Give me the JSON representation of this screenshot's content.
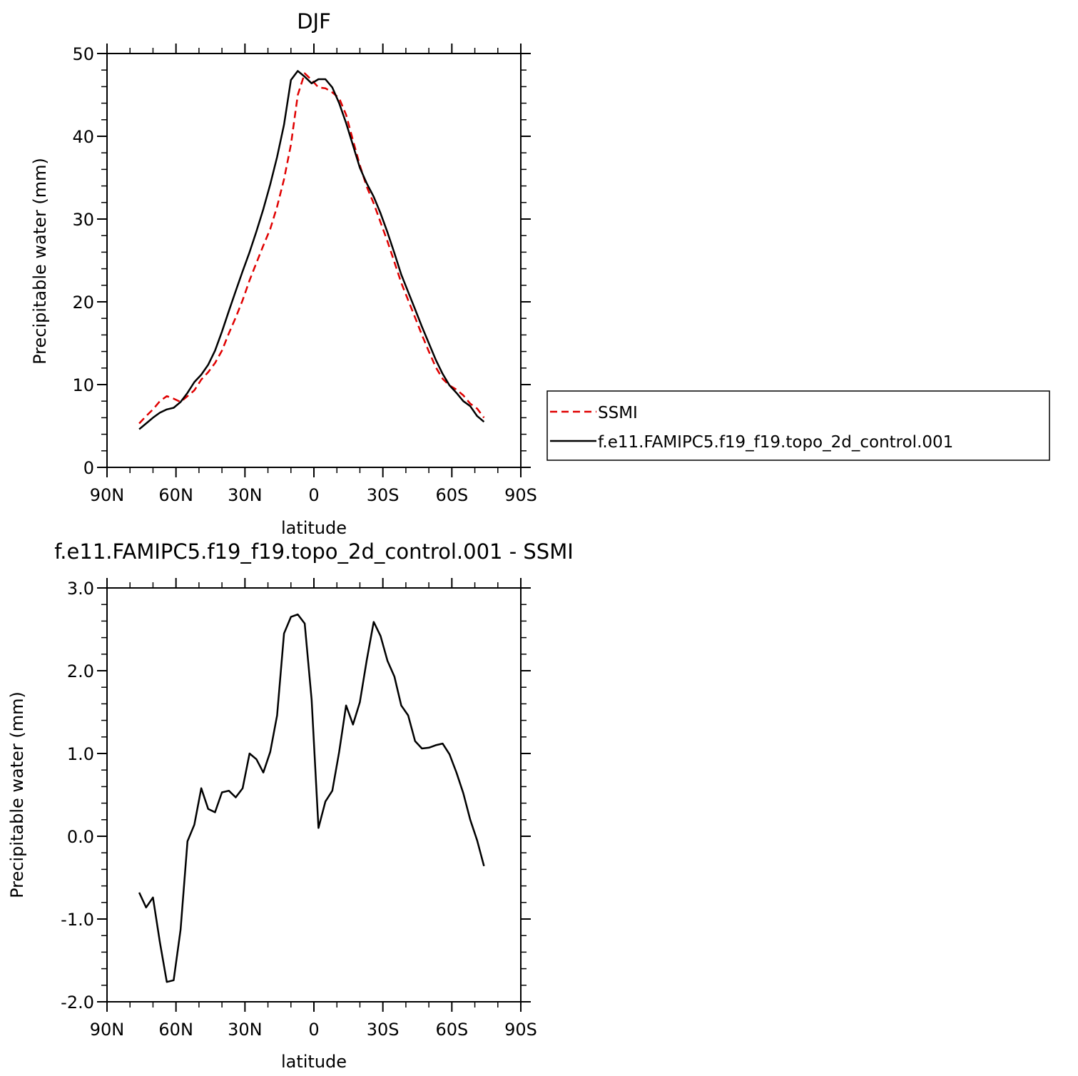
{
  "chart_data": [
    {
      "type": "line",
      "title": "DJF",
      "xlabel": "latitude",
      "ylabel": "Precipitable water (mm)",
      "xlim": [
        -90,
        90
      ],
      "ylim": [
        0,
        50
      ],
      "xticks": [
        -90,
        -60,
        -30,
        0,
        30,
        60,
        90
      ],
      "xtick_labels": [
        "90N",
        "60N",
        "30N",
        "0",
        "30S",
        "60S",
        "90S"
      ],
      "yticks": [
        0,
        10,
        20,
        30,
        40,
        50
      ],
      "ytick_labels": [
        "0",
        "10",
        "20",
        "30",
        "40",
        "50"
      ],
      "legend_position": "right",
      "series": [
        {
          "name": "SSMI",
          "color": "#e00000",
          "style": "dashed",
          "x": [
            -76,
            -73,
            -70,
            -67,
            -64,
            -61,
            -58,
            -55,
            -52,
            -49,
            -46,
            -43,
            -40,
            -37,
            -34,
            -31,
            -28,
            -25,
            -22,
            -19,
            -16,
            -13,
            -10,
            -7,
            -4,
            -1,
            2,
            5,
            8,
            11,
            14,
            17,
            20,
            23,
            26,
            29,
            32,
            35,
            38,
            41,
            44,
            47,
            50,
            53,
            56,
            59,
            62,
            65,
            68,
            71,
            74
          ],
          "y": [
            5.3,
            6.2,
            7.0,
            8.0,
            8.6,
            8.3,
            7.9,
            8.6,
            9.3,
            10.6,
            11.5,
            12.6,
            14.1,
            16.2,
            18.1,
            20.2,
            22.6,
            24.7,
            26.8,
            28.8,
            31.5,
            34.8,
            39.0,
            45.0,
            47.6,
            46.8,
            45.9,
            45.8,
            45.3,
            44.6,
            42.6,
            39.5,
            36.5,
            33.9,
            31.9,
            29.6,
            27.3,
            24.8,
            22.3,
            20.2,
            18.1,
            16.0,
            14.0,
            12.1,
            10.7,
            9.9,
            9.4,
            8.7,
            7.7,
            7.1,
            6.0
          ]
        },
        {
          "name": "f.e11.FAMIPC5.f19_f19.topo_2d_control.001",
          "color": "#000000",
          "style": "solid",
          "x": [
            -76,
            -73,
            -70,
            -67,
            -64,
            -61,
            -58,
            -55,
            -52,
            -49,
            -46,
            -43,
            -40,
            -37,
            -34,
            -31,
            -28,
            -25,
            -22,
            -19,
            -16,
            -13,
            -10,
            -7,
            -4,
            -1,
            2,
            5,
            8,
            11,
            14,
            17,
            20,
            23,
            26,
            29,
            32,
            35,
            38,
            41,
            44,
            47,
            50,
            53,
            56,
            59,
            62,
            65,
            68,
            71,
            74
          ],
          "y": [
            4.6,
            5.3,
            6.0,
            6.6,
            7.0,
            7.2,
            7.9,
            9.0,
            10.3,
            11.2,
            12.4,
            14.1,
            16.4,
            18.9,
            21.3,
            23.7,
            26.0,
            28.5,
            31.2,
            34.2,
            37.5,
            41.4,
            46.8,
            47.9,
            47.2,
            46.4,
            46.9,
            46.9,
            45.9,
            44.0,
            41.6,
            38.9,
            36.2,
            34.3,
            32.7,
            30.7,
            28.4,
            25.9,
            23.3,
            21.2,
            19.1,
            17.0,
            15.0,
            13.0,
            11.3,
            9.9,
            9.0,
            8.0,
            7.4,
            6.2,
            5.5
          ]
        }
      ]
    },
    {
      "type": "line",
      "title": "f.e11.FAMIPC5.f19_f19.topo_2d_control.001 - SSMI",
      "xlabel": "latitude",
      "ylabel": "Precipitable water (mm)",
      "xlim": [
        -90,
        90
      ],
      "ylim": [
        -2.0,
        3.0
      ],
      "xticks": [
        -90,
        -60,
        -30,
        0,
        30,
        60,
        90
      ],
      "xtick_labels": [
        "90N",
        "60N",
        "30N",
        "0",
        "30S",
        "60S",
        "90S"
      ],
      "yticks": [
        -2.0,
        -1.0,
        0.0,
        1.0,
        2.0,
        3.0
      ],
      "ytick_labels": [
        "-2.0",
        "-1.0",
        "0.0",
        "1.0",
        "2.0",
        "3.0"
      ],
      "series": [
        {
          "color": "#000000",
          "style": "solid",
          "x": [
            -76,
            -73,
            -70,
            -67,
            -64,
            -61,
            -58,
            -55,
            -52,
            -49,
            -46,
            -43,
            -40,
            -37,
            -34,
            -31,
            -28,
            -25,
            -22,
            -19,
            -16,
            -13,
            -10,
            -7,
            -4,
            -1,
            2,
            5,
            8,
            11,
            14,
            17,
            20,
            23,
            26,
            29,
            32,
            35,
            38,
            41,
            44,
            47,
            50,
            53,
            56,
            59,
            62,
            65,
            68,
            71,
            74
          ],
          "y": [
            -0.68,
            -0.86,
            -0.74,
            -1.28,
            -1.76,
            -1.74,
            -1.13,
            -0.06,
            0.14,
            0.58,
            0.33,
            0.29,
            0.53,
            0.55,
            0.47,
            0.58,
            1.0,
            0.93,
            0.77,
            1.02,
            1.46,
            2.45,
            2.65,
            2.68,
            2.57,
            1.65,
            0.1,
            0.42,
            0.55,
            1.02,
            1.58,
            1.35,
            1.62,
            2.13,
            2.59,
            2.42,
            2.12,
            1.93,
            1.58,
            1.46,
            1.15,
            1.06,
            1.07,
            1.1,
            1.12,
            0.99,
            0.77,
            0.52,
            0.2,
            -0.05,
            -0.36
          ]
        }
      ]
    }
  ]
}
